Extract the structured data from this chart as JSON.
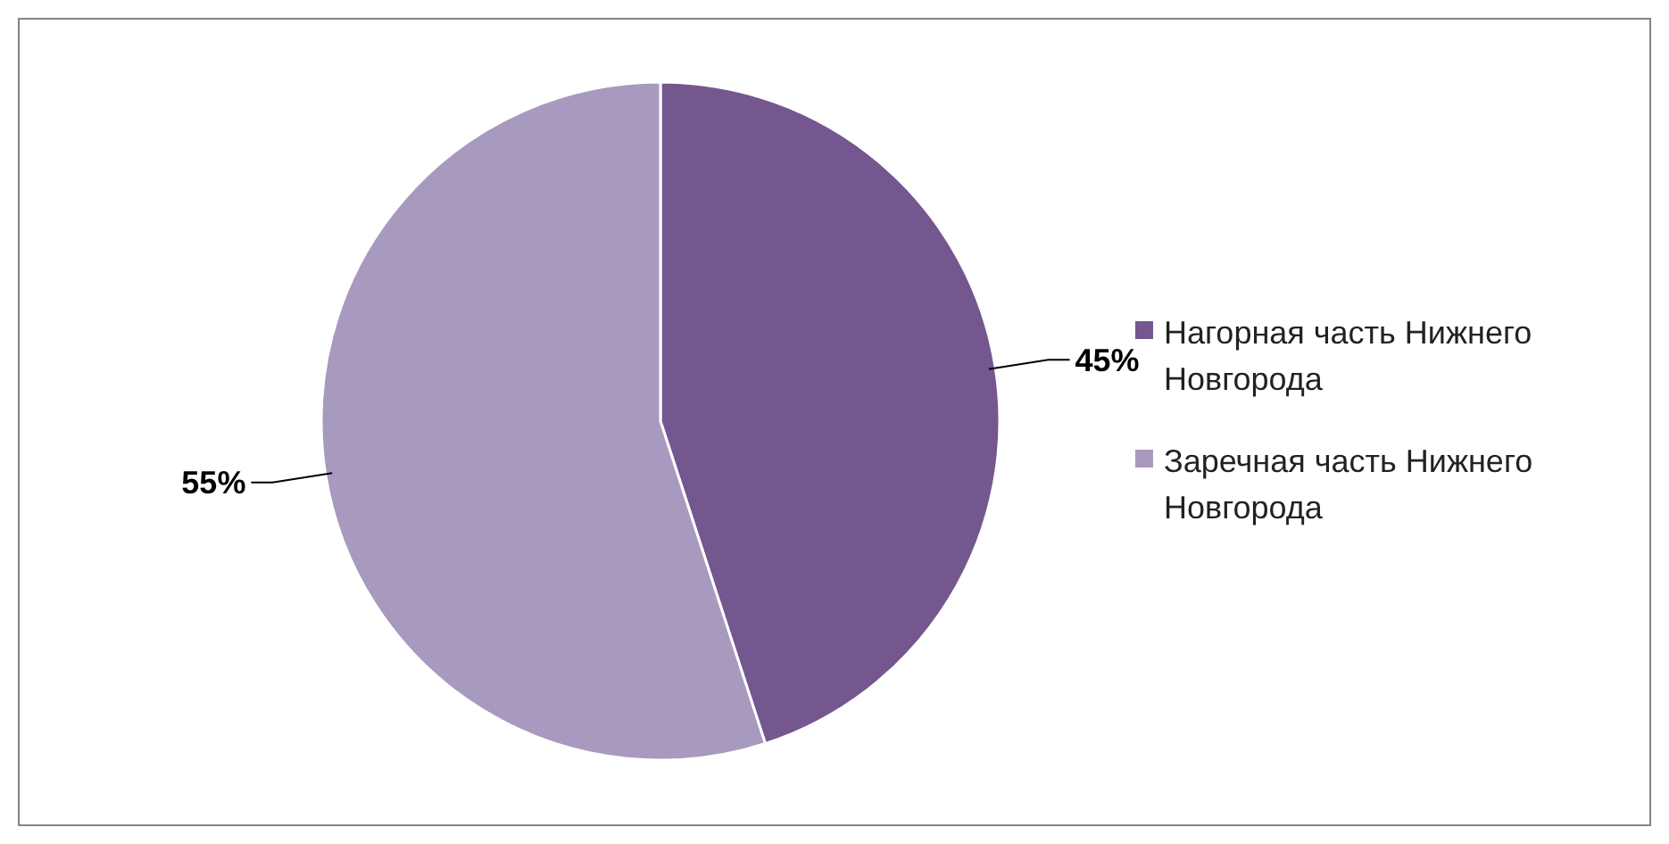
{
  "chart_data": {
    "type": "pie",
    "categories": [
      "Нагорная часть Нижнего Новгорода",
      "Заречная часть Нижнего Новгорода"
    ],
    "values": [
      45,
      55
    ],
    "colors": [
      "#74578f",
      "#a899bf"
    ],
    "value_labels": [
      "45%",
      "55%"
    ],
    "legend": "right"
  }
}
